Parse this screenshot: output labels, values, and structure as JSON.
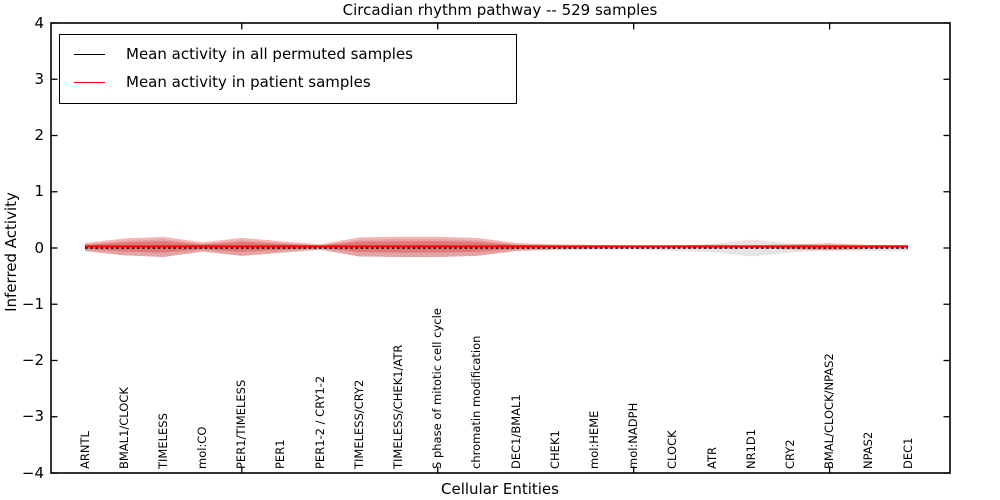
{
  "title": "Circadian rhythm pathway -- 529 samples",
  "legend": {
    "items": [
      {
        "label": "Mean activity in all permuted samples",
        "color": "#000000"
      },
      {
        "label": "Mean activity in patient samples",
        "color": "#ff0000"
      }
    ]
  },
  "chart_data": {
    "type": "area",
    "title": "Circadian rhythm pathway -- 529 samples",
    "xlabel": "Cellular Entities",
    "ylabel": "Inferred Activity",
    "ylim": [
      -4,
      4
    ],
    "yticks": [
      4,
      3,
      2,
      1,
      0,
      -1,
      -2,
      -3,
      -4
    ],
    "xticks_category_index": [
      4,
      9,
      14,
      19
    ],
    "grid": false,
    "legend_position": "upper left",
    "categories": [
      "ARNTL",
      "BMAL1/CLOCK",
      "TIMELESS",
      "mol:CO",
      "PER1/TIMELESS",
      "PER1",
      "PER1-2 / CRY1-2",
      "TIMELESS/CRY2",
      "TIMELESS/CHEK1/ATR",
      "S phase of mitotic cell cycle",
      "chromatin modification",
      "DEC1/BMAL1",
      "CHEK1",
      "mol:HEME",
      "mol:NADPH",
      "CLOCK",
      "ATR",
      "NR1D1",
      "CRY2",
      "BMAL/CLOCK/NPAS2",
      "NPAS2",
      "DEC1"
    ],
    "series": [
      {
        "name": "Mean activity in all permuted samples",
        "color": "#000000",
        "style": "dashed",
        "values": [
          0,
          0,
          0,
          0,
          0,
          0,
          0,
          0,
          0,
          0,
          0,
          0,
          0,
          0,
          0,
          0,
          0,
          0,
          0,
          0,
          0,
          0
        ]
      },
      {
        "name": "Mean activity in patient samples",
        "color": "#ff0000",
        "style": "solid",
        "values": [
          0.03,
          0.03,
          0.03,
          0.03,
          0.03,
          0.03,
          0.03,
          0.03,
          0.03,
          0.03,
          0.03,
          0.03,
          0.03,
          0.03,
          0.03,
          0.03,
          0.03,
          0.03,
          0.03,
          0.03,
          0.03,
          0.03
        ]
      }
    ],
    "bands": [
      {
        "name": "permuted-samples-std-band",
        "color": "rgba(130,130,130,0.22)",
        "center": 0.0,
        "halfwidths": [
          0.06,
          0.13,
          0.16,
          0.07,
          0.14,
          0.09,
          0.04,
          0.15,
          0.16,
          0.16,
          0.14,
          0.06,
          0.04,
          0.03,
          0.03,
          0.05,
          0.07,
          0.15,
          0.08,
          0.04,
          0.05,
          0.06
        ]
      },
      {
        "name": "patient-samples-std-band",
        "color": "rgba(225,32,32,0.33)",
        "center": 0.02,
        "halfwidths": [
          0.07,
          0.15,
          0.18,
          0.08,
          0.16,
          0.1,
          0.045,
          0.17,
          0.18,
          0.18,
          0.16,
          0.07,
          0.045,
          0.035,
          0.03,
          0.03,
          0.035,
          0.03,
          0.045,
          0.065,
          0.035,
          0.03
        ]
      }
    ]
  }
}
